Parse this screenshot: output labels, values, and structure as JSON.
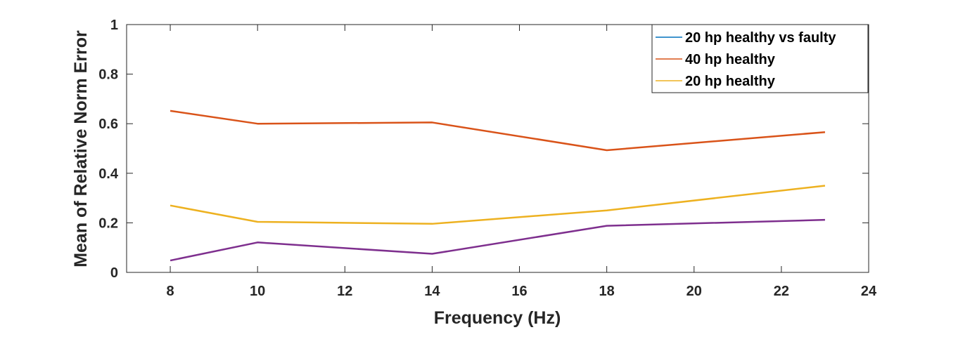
{
  "chart_data": {
    "type": "line",
    "xlabel": "Frequency (Hz)",
    "ylabel": "Mean of Relative Norm Error",
    "xlim": [
      7,
      24
    ],
    "ylim": [
      0,
      1
    ],
    "xticks": [
      8,
      10,
      12,
      14,
      16,
      18,
      20,
      22,
      24
    ],
    "yticks": [
      0,
      0.2,
      0.4,
      0.6,
      0.8,
      1
    ],
    "ytick_labels": [
      "0",
      "0.2",
      "0.4",
      "0.6",
      "0.8",
      "1"
    ],
    "grid": false,
    "legend_position": "top-right",
    "x": [
      8,
      10,
      14,
      18,
      23
    ],
    "series": [
      {
        "name": "20 hp healthy vs faulty",
        "color": "#0072BD",
        "values": [
          null,
          null,
          null,
          null,
          null
        ],
        "in_legend": true
      },
      {
        "name": "40 hp healthy",
        "color": "#D95319",
        "values": [
          0.652,
          0.6,
          0.605,
          0.493,
          0.566
        ],
        "in_legend": true
      },
      {
        "name": "20 hp healthy",
        "color": "#EDB120",
        "values": [
          0.27,
          0.204,
          0.196,
          0.25,
          0.35
        ],
        "in_legend": true
      },
      {
        "name": "",
        "color": "#7E2F8E",
        "values": [
          0.048,
          0.121,
          0.075,
          0.188,
          0.212
        ],
        "in_legend": false
      }
    ],
    "legend_swatch_colors": [
      "#0072BD",
      "#D95319",
      "#EDB120"
    ]
  }
}
